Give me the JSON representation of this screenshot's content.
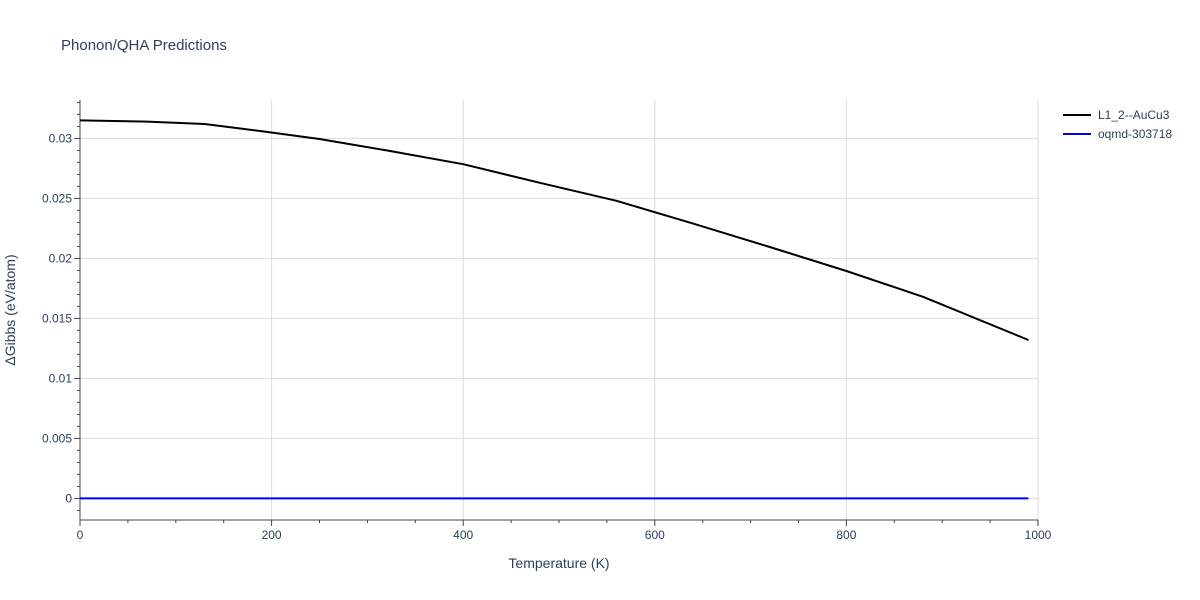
{
  "chart_data": {
    "type": "line",
    "title": "Phonon/QHA Predictions",
    "xlabel": "Temperature (K)",
    "ylabel": "ΔGibbs (eV/atom)",
    "xlim": [
      0,
      1000
    ],
    "ylim": [
      -0.0018,
      0.0332
    ],
    "x_ticks": [
      0,
      200,
      400,
      600,
      800,
      1000
    ],
    "x_tick_labels": [
      "0",
      "200",
      "400",
      "600",
      "800",
      "1000"
    ],
    "y_ticks": [
      0,
      0.005,
      0.01,
      0.015,
      0.02,
      0.025,
      0.03
    ],
    "y_tick_labels": [
      "0",
      "0.005",
      "0.01",
      "0.015",
      "0.02",
      "0.025",
      "0.03"
    ],
    "grid": true,
    "legend_position": "top-right",
    "series": [
      {
        "name": "L1_2--AuCu3",
        "color": "#000000",
        "x": [
          0,
          70,
          130,
          190,
          250,
          320,
          400,
          480,
          560,
          640,
          720,
          800,
          880,
          990
        ],
        "y": [
          0.0315,
          0.0314,
          0.0312,
          0.0306,
          0.02995,
          0.029,
          0.02785,
          0.0263,
          0.0248,
          0.0229,
          0.02095,
          0.01895,
          0.0168,
          0.0132
        ]
      },
      {
        "name": "oqmd-303718",
        "color": "#0000ff",
        "x": [
          0,
          990
        ],
        "y": [
          0,
          0
        ]
      }
    ]
  }
}
